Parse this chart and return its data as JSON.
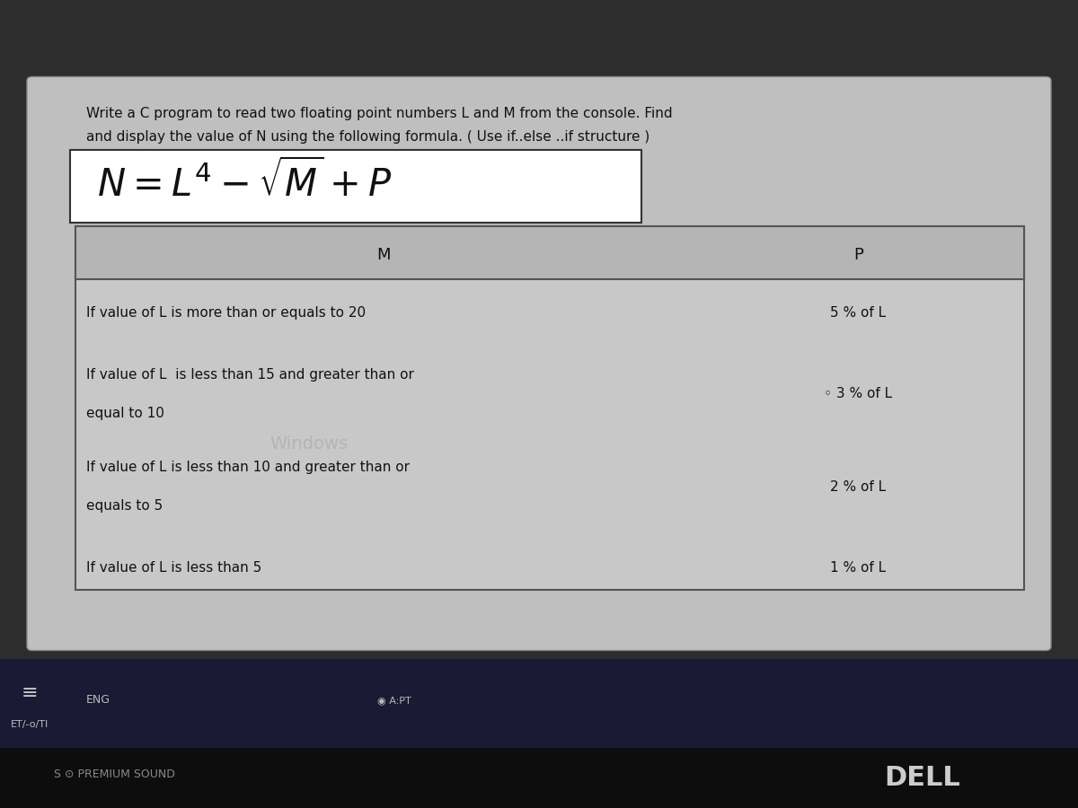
{
  "bg_color": "#2d2d2d",
  "content_bg": "#c0bfbf",
  "title_text1": "Write a C program to read two floating point numbers L and M from the console. Find",
  "title_text2": "and display the value of N using the following formula. ( Use if..else ..if structure )",
  "formula_box_color": "#ffffff",
  "table_header_col1": "M",
  "table_header_col2": "P",
  "table_rows": [
    [
      "If value of L is more than or equals to 20",
      "5 % of L"
    ],
    [
      "If value of L  is less than 15 and greater than or\nequal to 10",
      "3 % of L"
    ],
    [
      "If value of L is less than 10 and greater than or\nequals to 5",
      "2 % of L"
    ],
    [
      "If value of L is less than 5",
      "1 % of L"
    ]
  ],
  "table_bg": "#c8c8c8",
  "table_line_color": "#555555",
  "header_row_bg": "#b5b5b5",
  "taskbar_bg": "#1a1a35",
  "bottom_bg": "#0d0d0d",
  "title_fontsize": 11,
  "formula_fontsize": 30,
  "table_fontsize": 11,
  "windows_watermark": "Windows"
}
